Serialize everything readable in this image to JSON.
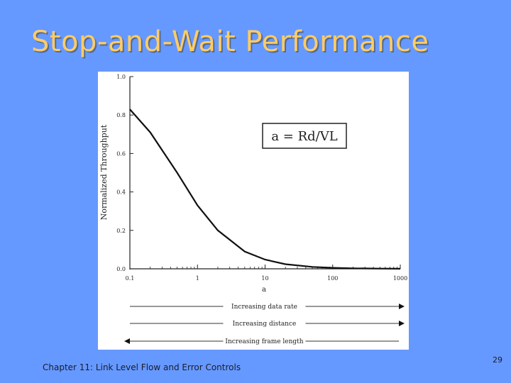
{
  "slide": {
    "title": "Stop-and-Wait Performance",
    "footer": "Chapter 11: Link Level Flow and Error Controls",
    "page_number": "29",
    "background_color": "#6699ff",
    "title_color": "#ffcc66"
  },
  "chart_data": {
    "type": "line",
    "xlabel": "a",
    "ylabel": "Normalized Throughput",
    "x_scale": "log",
    "xlim": [
      0.1,
      1000
    ],
    "ylim": [
      0.0,
      1.0
    ],
    "x_ticks": [
      "0.1",
      "1",
      "10",
      "100",
      "1000"
    ],
    "y_ticks": [
      "1.0",
      "0.8",
      "0.6",
      "0.4",
      "0.2",
      "0.0"
    ],
    "grid": false,
    "annotation": "a = Rd/VL",
    "series": [
      {
        "x": [
          0.1,
          0.2,
          0.5,
          1,
          2,
          5,
          10,
          20,
          50,
          100,
          200,
          500,
          1000
        ],
        "y": [
          0.83,
          0.71,
          0.5,
          0.33,
          0.2,
          0.09,
          0.048,
          0.024,
          0.01,
          0.005,
          0.0025,
          0.001,
          0.0005
        ]
      }
    ],
    "arrows": [
      {
        "label": "Increasing data rate",
        "direction": "right"
      },
      {
        "label": "Increasing distance",
        "direction": "right"
      },
      {
        "label": "Increasing frame length",
        "direction": "left"
      }
    ]
  }
}
